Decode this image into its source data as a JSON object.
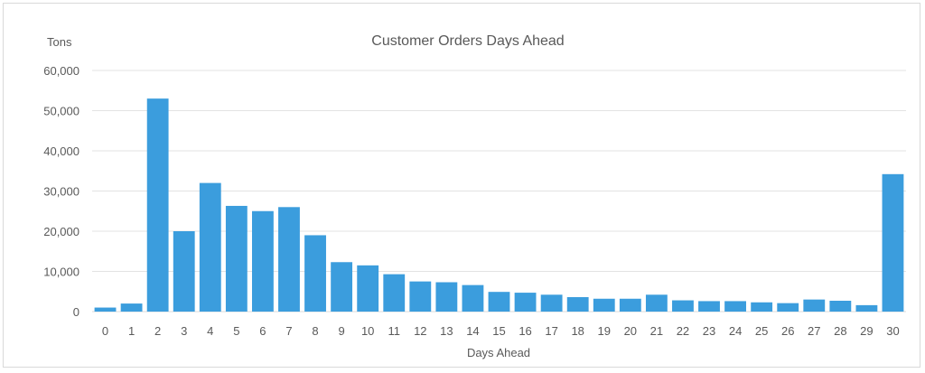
{
  "chart_data": {
    "type": "bar",
    "title": "Customer Orders Days Ahead",
    "ylabel": "Tons",
    "xlabel": "Days Ahead",
    "ylim": [
      0,
      60000
    ],
    "yticks": [
      "0",
      "10,000",
      "20,000",
      "30,000",
      "40,000",
      "50,000",
      "60,000"
    ],
    "categories": [
      "0",
      "1",
      "2",
      "3",
      "4",
      "5",
      "6",
      "7",
      "8",
      "9",
      "10",
      "11",
      "12",
      "13",
      "14",
      "15",
      "16",
      "17",
      "18",
      "19",
      "20",
      "21",
      "22",
      "23",
      "24",
      "25",
      "26",
      "27",
      "28",
      "29",
      "30"
    ],
    "values": [
      1000,
      2000,
      53000,
      20000,
      32000,
      26300,
      25000,
      26000,
      19000,
      12300,
      11500,
      9300,
      7500,
      7300,
      6600,
      4900,
      4700,
      4200,
      3600,
      3200,
      3200,
      4200,
      2800,
      2600,
      2600,
      2300,
      2100,
      3000,
      2700,
      1600,
      34200
    ],
    "bar_color": "#3b9ddd",
    "grid": true,
    "legend": "none"
  }
}
